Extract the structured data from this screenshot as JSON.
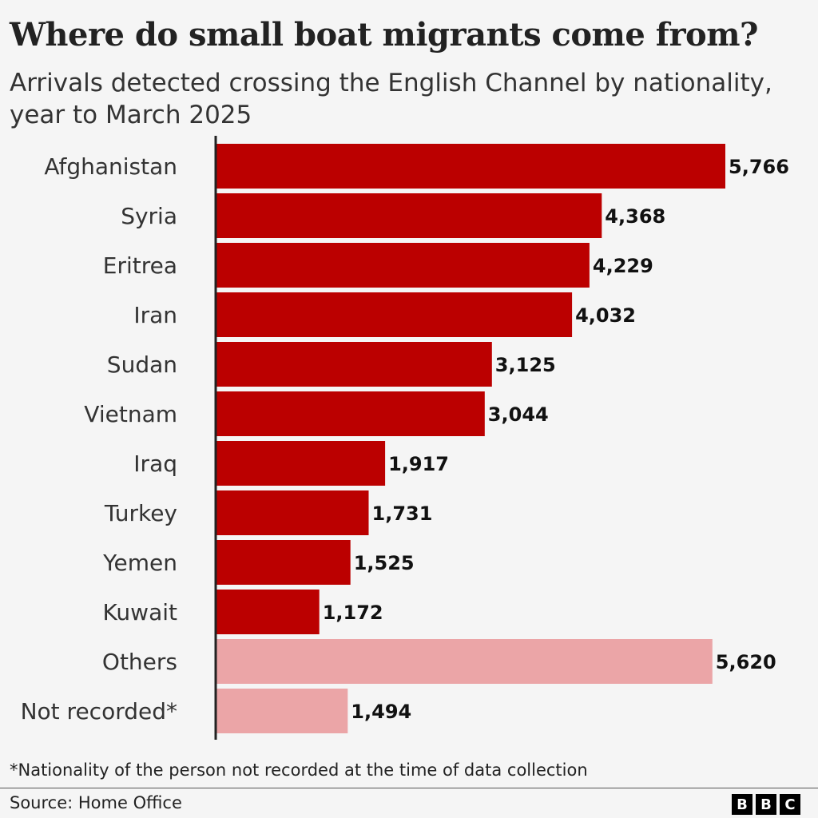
{
  "title": "Where do small boat migrants come from?",
  "subtitle": "Arrivals detected crossing the English Channel by nationality, year to March 2025",
  "footnote": "*Nationality of the person not recorded at the time of data collection",
  "source": "Source: Home Office",
  "logo": {
    "letters": [
      "B",
      "B",
      "C"
    ]
  },
  "colors": {
    "primary_bar": "#bb0000",
    "secondary_bar": "#eba5a7",
    "axis": "#222222",
    "background": "#f5f5f5"
  },
  "chart_data": {
    "type": "bar",
    "orientation": "horizontal",
    "categories": [
      "Afghanistan",
      "Syria",
      "Eritrea",
      "Iran",
      "Sudan",
      "Vietnam",
      "Iraq",
      "Turkey",
      "Yemen",
      "Kuwait",
      "Others",
      "Not recorded*"
    ],
    "values": [
      5766,
      4368,
      4229,
      4032,
      3125,
      3044,
      1917,
      1731,
      1525,
      1172,
      5620,
      1494
    ],
    "value_labels": [
      "5,766",
      "4,368",
      "4,229",
      "4,032",
      "3,125",
      "3,044",
      "1,917",
      "1,731",
      "1,525",
      "1,172",
      "5,620",
      "1,494"
    ],
    "highlight": [
      "primary",
      "primary",
      "primary",
      "primary",
      "primary",
      "primary",
      "primary",
      "primary",
      "primary",
      "primary",
      "secondary",
      "secondary"
    ],
    "title": "Where do small boat migrants come from?",
    "xlabel": "",
    "ylabel": "",
    "xlim": [
      0,
      5766
    ],
    "grid": false,
    "legend": "none"
  }
}
